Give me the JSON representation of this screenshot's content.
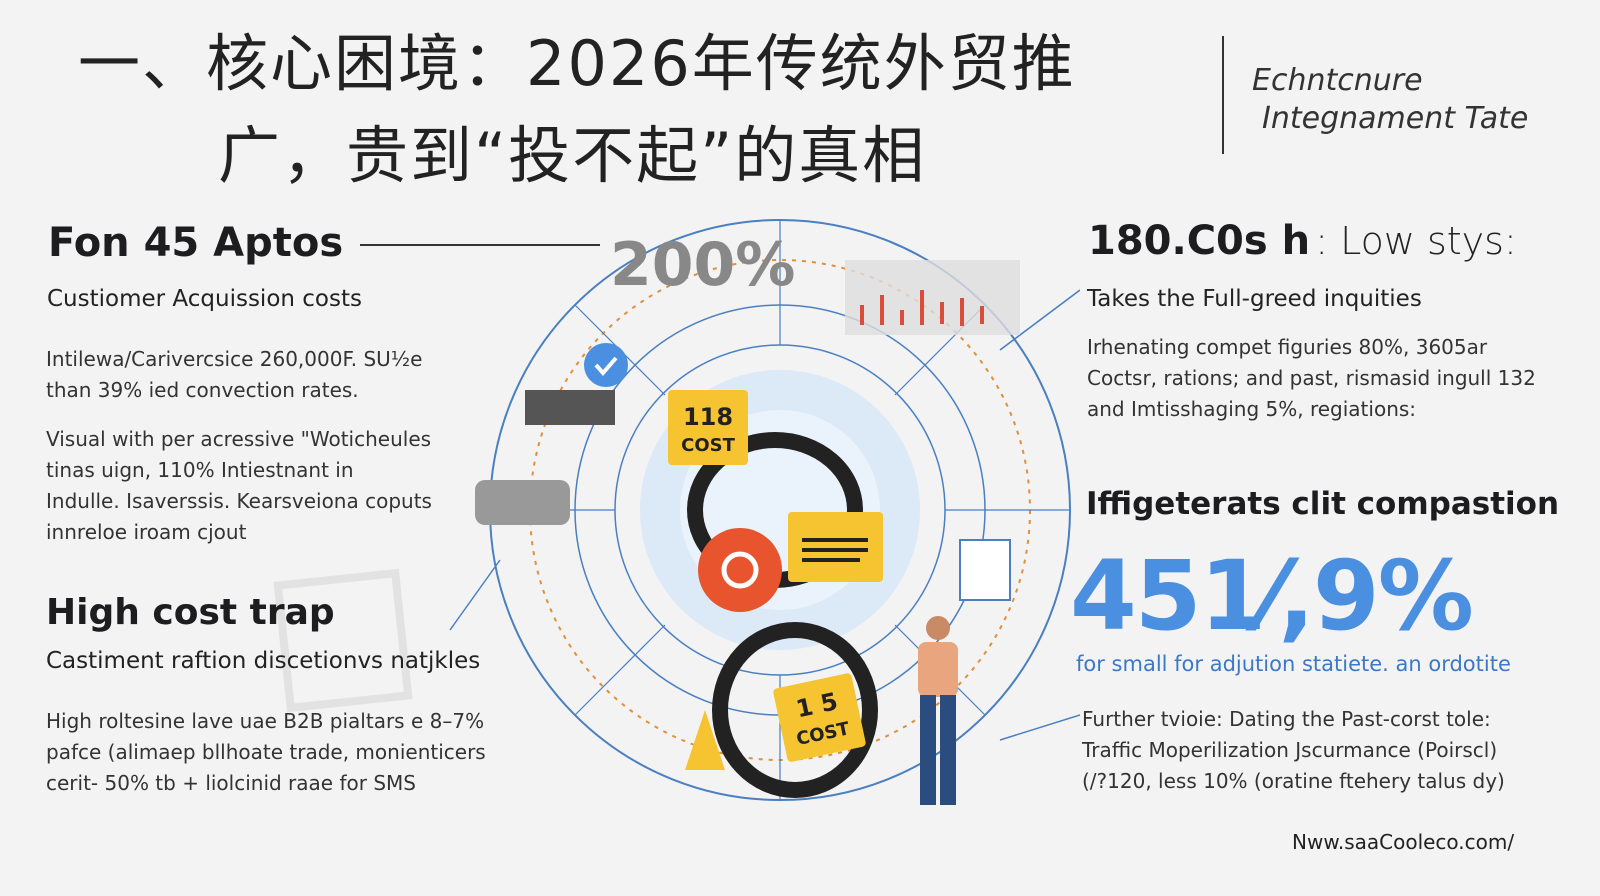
{
  "header": {
    "title_line1": "一、核心困境：2026年传统外贸推",
    "title_line2": "广，贵到“投不起”的真相",
    "tagline_line1": "Echntcnure",
    "tagline_line2": "Integnament Tate"
  },
  "left": {
    "section1": {
      "heading": "Fon 45 Aptos",
      "subheading": "Custiomer Acquission costs",
      "para1": [
        "Intilewa/Carivercsice 260,000F. SU½e",
        "than 39% ied convection rates."
      ],
      "para2": [
        "Visual with per acressive \"Woticheules",
        "tinas uign, 110% Intiestnant in",
        "Indulle. Isaverssis. Kearsveiona coputs",
        "innreloe iroam cjout"
      ]
    },
    "section2": {
      "heading": "High cost trap",
      "subheading": "Castiment raftion discetionvs natjkles",
      "para": [
        "High roltesine lave uae B2B pialtars e 8–7%",
        "pafce (alimaep bllhoate trade, monienticers",
        "cerit- 50% tb + liolcinid raae for SMS"
      ]
    }
  },
  "center": {
    "percent_label": "200%",
    "tag1_number": "118",
    "tag1_word": "COST",
    "tag2_number": "1 5",
    "tag2_word": "COST",
    "colors": {
      "ring": "#4a7fc0",
      "globe": "#d6e6f7",
      "tag": "#f5c430",
      "accent": "#e8542e"
    }
  },
  "right": {
    "section1": {
      "heading_bold": "180.C0s h",
      "heading_light": ": Low stys:",
      "subheading": "Takes the Full-greed inquities",
      "para": [
        "Irhenating compet figuries 80%, 3605ar",
        "Coctsr, rations; and past, rismasid ingull 132",
        "and Imtisshaging 5%, regiations:"
      ]
    },
    "section2": {
      "heading": "Iffigeterats clit compastion",
      "big_number": "451⁄,9%",
      "big_sub": "for small for adjution statiete. an ordotite",
      "para": [
        "Further tvioie: Dating the Past-corst tole:",
        "Traffic Moperilization Jscurmance (Poirscl)",
        "(/?120, less 10% (oratine ftehery talus dy)"
      ]
    },
    "url": "Nww.saaCooleco.com/"
  }
}
